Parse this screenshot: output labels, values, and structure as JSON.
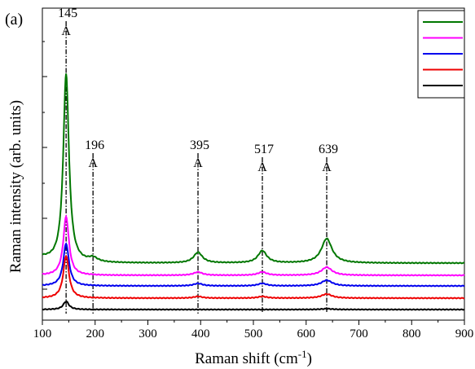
{
  "panel_label": "(a)",
  "chart_data": {
    "type": "line",
    "title": "",
    "xlabel": "Raman shift (cm",
    "xlabel_sup": "-1",
    "xlabel_close": ")",
    "ylabel": "Raman intensity (arb. units)",
    "xlim": [
      100,
      900
    ],
    "xticks": [
      "100",
      "200",
      "300",
      "400",
      "500",
      "600",
      "700",
      "800",
      "900"
    ],
    "y_tick_labels_shown": false,
    "grid": false,
    "legend": {
      "position": "top-right",
      "entries_text_visible": false
    },
    "peaks": [
      {
        "x": 145,
        "label": "145",
        "mode": "A"
      },
      {
        "x": 196,
        "label": "196",
        "mode": "A"
      },
      {
        "x": 395,
        "label": "395",
        "mode": "A"
      },
      {
        "x": 517,
        "label": "517",
        "mode": "A"
      },
      {
        "x": 639,
        "label": "639",
        "mode": "A"
      }
    ],
    "series": [
      {
        "color": "#007700",
        "baseline": 31,
        "peaks": [
          [
            145,
            232
          ],
          [
            196,
            5
          ],
          [
            395,
            13
          ],
          [
            517,
            15
          ],
          [
            639,
            30
          ]
        ]
      },
      {
        "color": "#ff00ff",
        "baseline": 20,
        "peaks": [
          [
            145,
            72
          ],
          [
            395,
            4
          ],
          [
            517,
            4
          ],
          [
            639,
            10
          ]
        ]
      },
      {
        "color": "#0000ee",
        "baseline": 14,
        "peaks": [
          [
            145,
            52
          ],
          [
            395,
            3
          ],
          [
            517,
            3
          ],
          [
            639,
            7
          ]
        ]
      },
      {
        "color": "#ee0000",
        "baseline": 6,
        "peaks": [
          [
            145,
            52
          ],
          [
            395,
            2
          ],
          [
            517,
            2
          ],
          [
            639,
            5
          ]
        ]
      },
      {
        "color": "#000000",
        "baseline": 0,
        "peaks": [
          [
            145,
            10
          ],
          [
            639,
            1
          ]
        ]
      }
    ]
  }
}
